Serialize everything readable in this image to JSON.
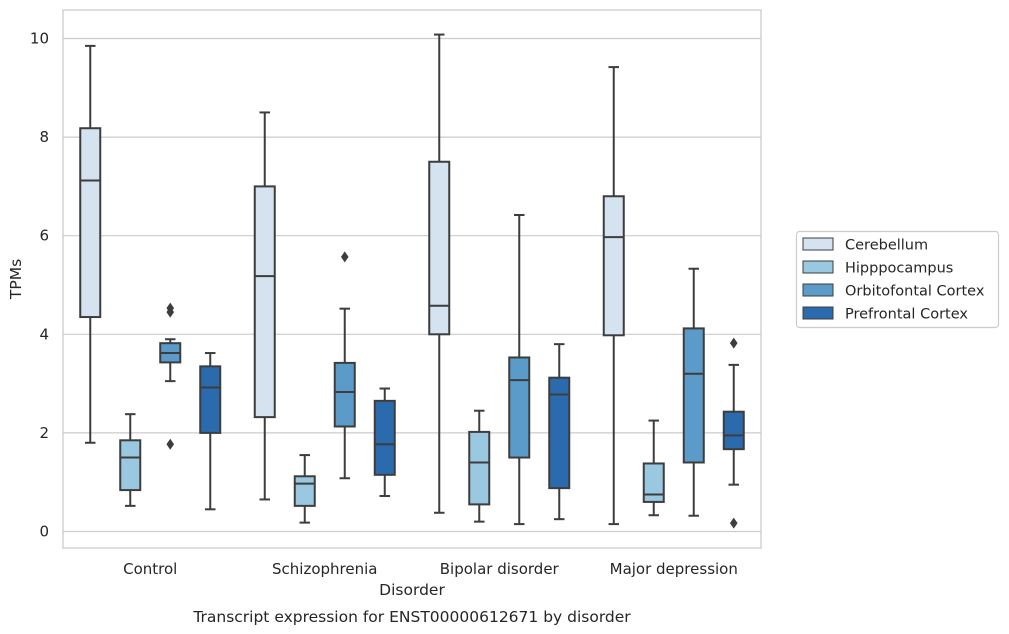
{
  "chart_data": {
    "type": "box",
    "caption": "Transcript expression for ENST00000612671 by disorder",
    "xlabel": "Disorder",
    "ylabel": "TPMs",
    "ylim": [
      -0.3,
      10.6
    ],
    "yticks": [
      0,
      2,
      4,
      6,
      8,
      10
    ],
    "grid": "horizontal",
    "legend_position": "right",
    "categories": [
      "Control",
      "Schizophrenia",
      "Bipolar disorder",
      "Major depression"
    ],
    "series": [
      {
        "name": "Cerebellum",
        "color": "#d5e2f0",
        "boxes": [
          {
            "whisker_low": 1.8,
            "q1": 4.35,
            "median": 7.12,
            "q3": 8.18,
            "whisker_high": 9.85,
            "outliers": []
          },
          {
            "whisker_low": 0.65,
            "q1": 2.32,
            "median": 5.18,
            "q3": 7.0,
            "whisker_high": 8.5,
            "outliers": []
          },
          {
            "whisker_low": 0.38,
            "q1": 4.0,
            "median": 4.58,
            "q3": 7.5,
            "whisker_high": 10.08,
            "outliers": []
          },
          {
            "whisker_low": 0.15,
            "q1": 3.98,
            "median": 5.97,
            "q3": 6.8,
            "whisker_high": 9.42,
            "outliers": []
          }
        ]
      },
      {
        "name": "Hipppocampus",
        "color": "#9ac8e0",
        "boxes": [
          {
            "whisker_low": 0.52,
            "q1": 0.84,
            "median": 1.5,
            "q3": 1.85,
            "whisker_high": 2.38,
            "outliers": []
          },
          {
            "whisker_low": 0.18,
            "q1": 0.52,
            "median": 0.97,
            "q3": 1.12,
            "whisker_high": 1.55,
            "outliers": []
          },
          {
            "whisker_low": 0.2,
            "q1": 0.55,
            "median": 1.4,
            "q3": 2.02,
            "whisker_high": 2.45,
            "outliers": []
          },
          {
            "whisker_low": 0.33,
            "q1": 0.6,
            "median": 0.75,
            "q3": 1.38,
            "whisker_high": 2.25,
            "outliers": []
          }
        ]
      },
      {
        "name": "Orbitofontal Cortex",
        "color": "#5a9bc9",
        "boxes": [
          {
            "whisker_low": 3.05,
            "q1": 3.43,
            "median": 3.62,
            "q3": 3.82,
            "whisker_high": 3.9,
            "outliers": [
              4.53,
              4.45,
              1.77
            ]
          },
          {
            "whisker_low": 1.08,
            "q1": 2.13,
            "median": 2.83,
            "q3": 3.42,
            "whisker_high": 4.52,
            "outliers": [
              5.57
            ]
          },
          {
            "whisker_low": 0.15,
            "q1": 1.5,
            "median": 3.07,
            "q3": 3.53,
            "whisker_high": 6.42,
            "outliers": []
          },
          {
            "whisker_low": 0.32,
            "q1": 1.4,
            "median": 3.2,
            "q3": 4.12,
            "whisker_high": 5.33,
            "outliers": []
          }
        ]
      },
      {
        "name": "Prefrontal Cortex",
        "color": "#2b6aad",
        "boxes": [
          {
            "whisker_low": 0.45,
            "q1": 2.0,
            "median": 2.92,
            "q3": 3.35,
            "whisker_high": 3.62,
            "outliers": []
          },
          {
            "whisker_low": 0.72,
            "q1": 1.15,
            "median": 1.77,
            "q3": 2.65,
            "whisker_high": 2.9,
            "outliers": []
          },
          {
            "whisker_low": 0.25,
            "q1": 0.88,
            "median": 2.78,
            "q3": 3.12,
            "whisker_high": 3.8,
            "outliers": []
          },
          {
            "whisker_low": 0.95,
            "q1": 1.67,
            "median": 1.95,
            "q3": 2.43,
            "whisker_high": 3.38,
            "outliers": [
              3.82,
              0.17
            ]
          }
        ]
      }
    ]
  }
}
